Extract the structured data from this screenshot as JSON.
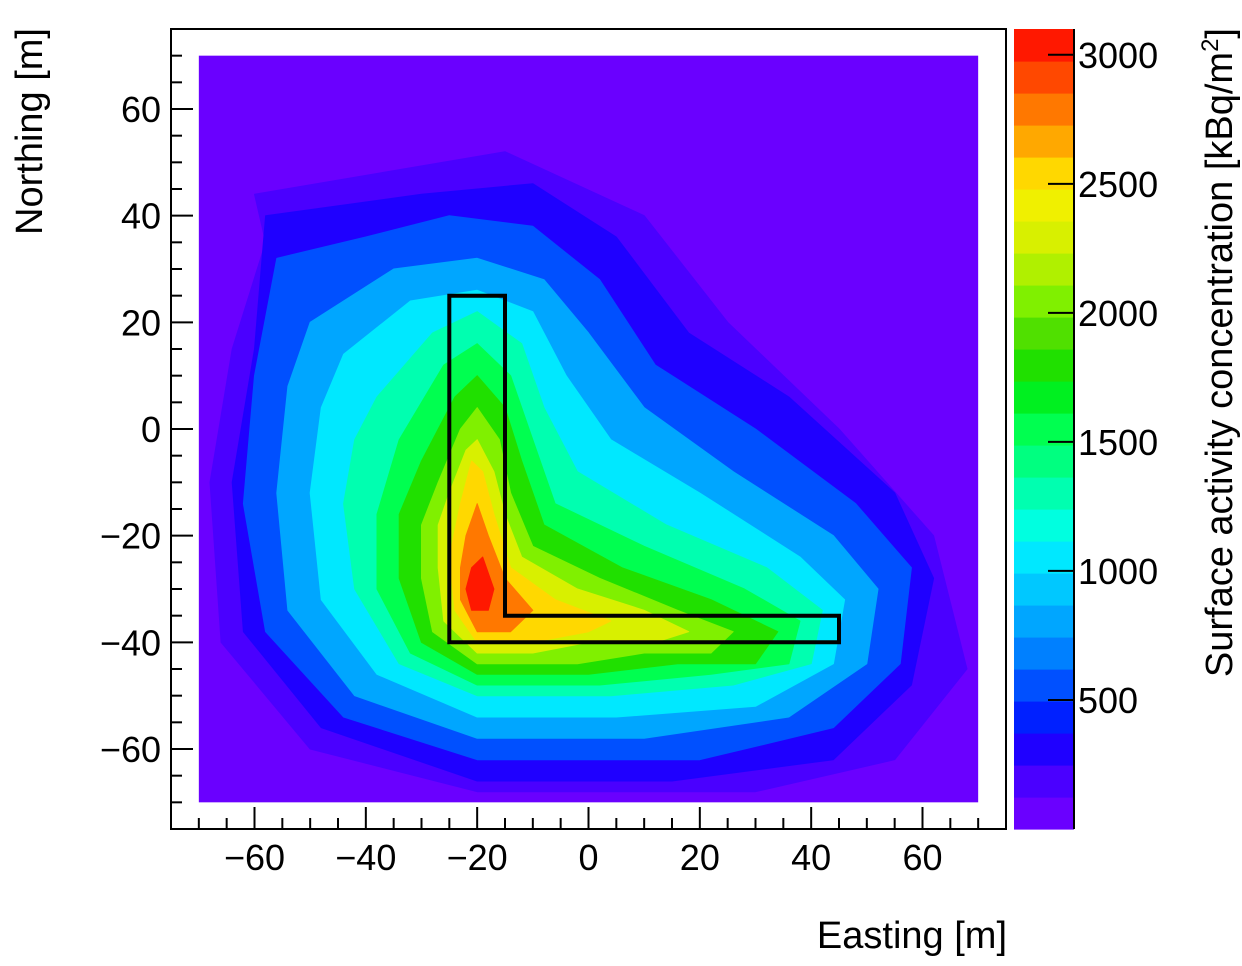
{
  "chart_data": {
    "type": "heatmap",
    "title": "",
    "xlabel": "Easting [m]",
    "ylabel": "Northing [m]",
    "zlabel_main": "Surface activity concentration [kBq/m",
    "zlabel_sup": "2",
    "zlabel_tail": "]",
    "xlim": [
      -75,
      75
    ],
    "ylim": [
      -75,
      75
    ],
    "data_extent": {
      "x": [
        -70,
        70
      ],
      "y": [
        -70,
        70
      ]
    },
    "zlim": [
      0,
      3100
    ],
    "grid": false,
    "x_ticks": [
      -60,
      -40,
      -20,
      0,
      20,
      40,
      60
    ],
    "x_tick_labels": [
      "−60",
      "−40",
      "−20",
      "0",
      "20",
      "40",
      "60"
    ],
    "y_ticks": [
      -60,
      -40,
      -20,
      0,
      20,
      40,
      60
    ],
    "y_tick_labels": [
      "−60",
      "−40",
      "−20",
      "0",
      "20",
      "40",
      "60"
    ],
    "colorbar_ticks": [
      500,
      1000,
      1500,
      2000,
      2500,
      3000
    ],
    "colorbar_tick_labels": [
      "500",
      "1000",
      "1500",
      "2000",
      "2500",
      "3000"
    ],
    "colorbar_colors": [
      "#6a00ff",
      "#4a00ff",
      "#1f00ff",
      "#0020ff",
      "#0050ff",
      "#0080ff",
      "#00a6ff",
      "#00c8ff",
      "#00e8ff",
      "#00ffe0",
      "#00ffb0",
      "#00ff80",
      "#00ff50",
      "#00f020",
      "#20e000",
      "#50e000",
      "#80f000",
      "#b0f000",
      "#d8f000",
      "#f0f000",
      "#ffd800",
      "#ffa800",
      "#ff7800",
      "#ff4800",
      "#ff1800"
    ],
    "levels": [
      {
        "value": 125,
        "points": [
          [
            -60,
            44
          ],
          [
            -15,
            52
          ],
          [
            10,
            40
          ],
          [
            25,
            20
          ],
          [
            45,
            0
          ],
          [
            62,
            -20
          ],
          [
            68,
            -45
          ],
          [
            55,
            -62
          ],
          [
            30,
            -68
          ],
          [
            -20,
            -68
          ],
          [
            -50,
            -60
          ],
          [
            -66,
            -40
          ],
          [
            -68,
            -10
          ],
          [
            -64,
            15
          ],
          [
            -58,
            35
          ]
        ]
      },
      {
        "value": 250,
        "points": [
          [
            -58,
            40
          ],
          [
            -30,
            44
          ],
          [
            -10,
            46
          ],
          [
            5,
            36
          ],
          [
            18,
            18
          ],
          [
            36,
            6
          ],
          [
            55,
            -12
          ],
          [
            62,
            -28
          ],
          [
            58,
            -48
          ],
          [
            44,
            -62
          ],
          [
            15,
            -66
          ],
          [
            -20,
            -66
          ],
          [
            -48,
            -56
          ],
          [
            -62,
            -38
          ],
          [
            -64,
            -10
          ],
          [
            -60,
            15
          ]
        ]
      },
      {
        "value": 500,
        "points": [
          [
            -56,
            32
          ],
          [
            -40,
            36
          ],
          [
            -25,
            40
          ],
          [
            -10,
            38
          ],
          [
            2,
            28
          ],
          [
            12,
            12
          ],
          [
            30,
            0
          ],
          [
            48,
            -14
          ],
          [
            58,
            -26
          ],
          [
            56,
            -44
          ],
          [
            44,
            -56
          ],
          [
            20,
            -62
          ],
          [
            -20,
            -62
          ],
          [
            -44,
            -54
          ],
          [
            -58,
            -38
          ],
          [
            -62,
            -14
          ],
          [
            -60,
            10
          ]
        ]
      },
      {
        "value": 750,
        "points": [
          [
            -50,
            20
          ],
          [
            -35,
            30
          ],
          [
            -20,
            32
          ],
          [
            -8,
            28
          ],
          [
            0,
            18
          ],
          [
            10,
            4
          ],
          [
            26,
            -8
          ],
          [
            44,
            -20
          ],
          [
            52,
            -30
          ],
          [
            50,
            -44
          ],
          [
            36,
            -54
          ],
          [
            10,
            -58
          ],
          [
            -20,
            -58
          ],
          [
            -42,
            -50
          ],
          [
            -54,
            -34
          ],
          [
            -56,
            -12
          ],
          [
            -54,
            8
          ]
        ]
      },
      {
        "value": 1000,
        "points": [
          [
            -44,
            14
          ],
          [
            -32,
            24
          ],
          [
            -20,
            26
          ],
          [
            -10,
            22
          ],
          [
            -4,
            10
          ],
          [
            4,
            -2
          ],
          [
            20,
            -12
          ],
          [
            38,
            -24
          ],
          [
            46,
            -32
          ],
          [
            44,
            -44
          ],
          [
            30,
            -52
          ],
          [
            5,
            -54
          ],
          [
            -20,
            -54
          ],
          [
            -38,
            -46
          ],
          [
            -48,
            -32
          ],
          [
            -50,
            -12
          ],
          [
            -48,
            4
          ]
        ]
      },
      {
        "value": 1250,
        "points": [
          [
            -38,
            6
          ],
          [
            -28,
            18
          ],
          [
            -20,
            22
          ],
          [
            -12,
            16
          ],
          [
            -8,
            4
          ],
          [
            -2,
            -8
          ],
          [
            14,
            -18
          ],
          [
            32,
            -26
          ],
          [
            42,
            -34
          ],
          [
            40,
            -44
          ],
          [
            26,
            -48
          ],
          [
            4,
            -50
          ],
          [
            -20,
            -50
          ],
          [
            -34,
            -44
          ],
          [
            -42,
            -30
          ],
          [
            -44,
            -14
          ],
          [
            -42,
            -2
          ]
        ]
      },
      {
        "value": 1500,
        "points": [
          [
            -34,
            -2
          ],
          [
            -26,
            12
          ],
          [
            -20,
            16
          ],
          [
            -14,
            10
          ],
          [
            -10,
            -2
          ],
          [
            -6,
            -14
          ],
          [
            10,
            -22
          ],
          [
            28,
            -30
          ],
          [
            38,
            -36
          ],
          [
            36,
            -44
          ],
          [
            22,
            -46
          ],
          [
            2,
            -48
          ],
          [
            -20,
            -48
          ],
          [
            -32,
            -42
          ],
          [
            -38,
            -30
          ],
          [
            -38,
            -16
          ]
        ]
      },
      {
        "value": 1750,
        "points": [
          [
            -30,
            -6
          ],
          [
            -24,
            6
          ],
          [
            -20,
            10
          ],
          [
            -15,
            4
          ],
          [
            -12,
            -6
          ],
          [
            -8,
            -18
          ],
          [
            6,
            -26
          ],
          [
            22,
            -32
          ],
          [
            34,
            -38
          ],
          [
            30,
            -44
          ],
          [
            16,
            -44
          ],
          [
            0,
            -46
          ],
          [
            -20,
            -46
          ],
          [
            -30,
            -40
          ],
          [
            -34,
            -28
          ],
          [
            -34,
            -16
          ]
        ]
      },
      {
        "value": 2000,
        "points": [
          [
            -27,
            -10
          ],
          [
            -23,
            0
          ],
          [
            -20,
            4
          ],
          [
            -16,
            -2
          ],
          [
            -14,
            -12
          ],
          [
            -10,
            -22
          ],
          [
            2,
            -28
          ],
          [
            16,
            -34
          ],
          [
            26,
            -38
          ],
          [
            22,
            -42
          ],
          [
            10,
            -42
          ],
          [
            -2,
            -44
          ],
          [
            -20,
            -44
          ],
          [
            -28,
            -38
          ],
          [
            -30,
            -28
          ],
          [
            -30,
            -18
          ]
        ]
      },
      {
        "value": 2250,
        "points": [
          [
            -25,
            -12
          ],
          [
            -22,
            -4
          ],
          [
            -20,
            -2
          ],
          [
            -17,
            -8
          ],
          [
            -15,
            -16
          ],
          [
            -12,
            -24
          ],
          [
            -2,
            -30
          ],
          [
            10,
            -34
          ],
          [
            18,
            -38
          ],
          [
            12,
            -40
          ],
          [
            0,
            -40
          ],
          [
            -10,
            -42
          ],
          [
            -20,
            -42
          ],
          [
            -26,
            -36
          ],
          [
            -27,
            -26
          ],
          [
            -27,
            -18
          ]
        ]
      },
      {
        "value": 2500,
        "points": [
          [
            -23,
            -14
          ],
          [
            -21,
            -6
          ],
          [
            -19,
            -8
          ],
          [
            -17,
            -16
          ],
          [
            -14,
            -26
          ],
          [
            -6,
            -32
          ],
          [
            4,
            -36
          ],
          [
            0,
            -38
          ],
          [
            -10,
            -40
          ],
          [
            -20,
            -40
          ],
          [
            -24,
            -34
          ],
          [
            -25,
            -24
          ]
        ]
      },
      {
        "value": 2750,
        "points": [
          [
            -22,
            -20
          ],
          [
            -20,
            -14
          ],
          [
            -18,
            -20
          ],
          [
            -15,
            -28
          ],
          [
            -10,
            -34
          ],
          [
            -14,
            -38
          ],
          [
            -20,
            -38
          ],
          [
            -23,
            -32
          ],
          [
            -23,
            -26
          ]
        ]
      },
      {
        "value": 3000,
        "points": [
          [
            -21,
            -26
          ],
          [
            -19,
            -24
          ],
          [
            -17,
            -30
          ],
          [
            -18,
            -34
          ],
          [
            -21,
            -34
          ],
          [
            -22,
            -30
          ]
        ]
      }
    ],
    "outline_polygon": [
      [
        -25,
        25
      ],
      [
        -15,
        25
      ],
      [
        -15,
        -35
      ],
      [
        45,
        -35
      ],
      [
        45,
        -40
      ],
      [
        -25,
        -40
      ]
    ]
  }
}
